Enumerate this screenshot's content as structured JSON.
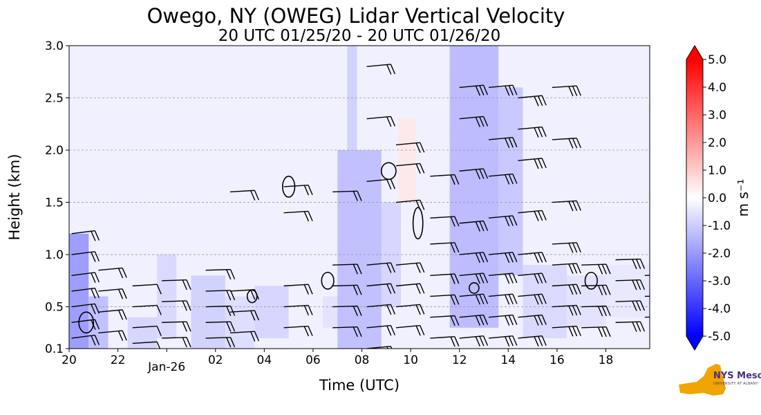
{
  "chart_data": {
    "type": "heatmap",
    "title": "Owego, NY (OWEG) Lidar Vertical Velocity",
    "subtitle": "20 UTC 01/25/20 - 20 UTC 01/26/20",
    "xlabel": "Time (UTC)",
    "ylabel": "Height (km)",
    "x_ticks": [
      "20",
      "22",
      "Jan-26",
      "02",
      "04",
      "06",
      "08",
      "10",
      "12",
      "14",
      "16",
      "18"
    ],
    "x_tick_hours": [
      0,
      2,
      4,
      6,
      8,
      10,
      12,
      14,
      16,
      18,
      20,
      22
    ],
    "xlim_hours": [
      0,
      23.8
    ],
    "y_ticks": [
      "0.1",
      "0.5",
      "1.0",
      "1.5",
      "2.0",
      "2.5",
      "3.0"
    ],
    "y_tick_values": [
      0.1,
      0.5,
      1.0,
      1.5,
      2.0,
      2.5,
      3.0
    ],
    "ylim": [
      0.1,
      3.0
    ],
    "grid": "horizontal dashed",
    "colorbar": {
      "label": "m s⁻¹",
      "min": -5.0,
      "max": 5.0,
      "extend": "both",
      "tick_labels": [
        "5.0",
        "4.0",
        "3.0",
        "2.0",
        "1.0",
        "0.0",
        "-1.0",
        "-2.0",
        "-3.0",
        "-4.0",
        "-5.0"
      ],
      "tick_values": [
        5,
        4,
        3,
        2,
        1,
        0,
        -1,
        -2,
        -3,
        -4,
        -5
      ],
      "colors": {
        "low": "#0000ff",
        "mid": "#ffffff",
        "high": "#ff0000"
      }
    },
    "background_value": -0.3,
    "velocity_patches": [
      {
        "t0": 0.0,
        "t1": 0.8,
        "h0": 0.1,
        "h1": 1.2,
        "value": -2.2
      },
      {
        "t0": 0.8,
        "t1": 1.6,
        "h0": 0.1,
        "h1": 0.6,
        "value": -1.4
      },
      {
        "t0": 2.4,
        "t1": 3.6,
        "h0": 0.1,
        "h1": 0.4,
        "value": -0.9
      },
      {
        "t0": 3.6,
        "t1": 4.4,
        "h0": 0.2,
        "h1": 1.0,
        "value": -0.8
      },
      {
        "t0": 5.0,
        "t1": 6.4,
        "h0": 0.1,
        "h1": 0.8,
        "value": -1.0
      },
      {
        "t0": 6.4,
        "t1": 7.6,
        "h0": 0.1,
        "h1": 0.6,
        "value": -0.7
      },
      {
        "t0": 7.6,
        "t1": 9.0,
        "h0": 0.2,
        "h1": 0.7,
        "value": -0.9
      },
      {
        "t0": 10.4,
        "t1": 11.2,
        "h0": 0.3,
        "h1": 0.6,
        "value": -0.6
      },
      {
        "t0": 11.0,
        "t1": 12.8,
        "h0": 0.1,
        "h1": 2.0,
        "value": -1.4
      },
      {
        "t0": 11.4,
        "t1": 11.8,
        "h0": 2.0,
        "h1": 3.0,
        "value": -1.0
      },
      {
        "t0": 12.8,
        "t1": 13.6,
        "h0": 0.5,
        "h1": 1.5,
        "value": -0.9
      },
      {
        "t0": 13.5,
        "t1": 14.2,
        "h0": 1.5,
        "h1": 2.3,
        "value": 0.5
      },
      {
        "t0": 15.6,
        "t1": 17.6,
        "h0": 0.3,
        "h1": 3.0,
        "value": -1.5
      },
      {
        "t0": 17.6,
        "t1": 18.6,
        "h0": 0.8,
        "h1": 2.6,
        "value": -1.2
      },
      {
        "t0": 18.6,
        "t1": 20.4,
        "h0": 0.2,
        "h1": 0.9,
        "value": -0.8
      },
      {
        "t0": 20.4,
        "t1": 22.0,
        "h0": 0.3,
        "h1": 0.8,
        "value": -0.6
      },
      {
        "t0": 22.0,
        "t1": 23.8,
        "h0": 0.4,
        "h1": 0.9,
        "value": -0.5
      }
    ],
    "contours": [
      {
        "t": 9.0,
        "h": 1.65,
        "rt": 0.25,
        "rh": 0.1
      },
      {
        "t": 13.1,
        "h": 1.8,
        "rt": 0.3,
        "rh": 0.08
      },
      {
        "t": 14.3,
        "h": 1.3,
        "rt": 0.2,
        "rh": 0.15
      },
      {
        "t": 10.6,
        "h": 0.75,
        "rt": 0.25,
        "rh": 0.08
      },
      {
        "t": 7.5,
        "h": 0.6,
        "rt": 0.2,
        "rh": 0.06
      },
      {
        "t": 21.4,
        "h": 0.75,
        "rt": 0.25,
        "rh": 0.08
      },
      {
        "t": 0.7,
        "h": 0.35,
        "rt": 0.3,
        "rh": 0.1
      },
      {
        "t": 16.6,
        "h": 0.68,
        "rt": 0.2,
        "rh": 0.05
      }
    ],
    "wind_barb_columns": [
      {
        "t": 0.1,
        "heights": [
          0.2,
          0.35,
          0.5,
          0.65,
          0.8,
          1.0,
          1.2
        ],
        "dir": 250,
        "flags": 2
      },
      {
        "t": 1.2,
        "heights": [
          0.25,
          0.45,
          0.65,
          0.85
        ],
        "dir": 255,
        "flags": 2
      },
      {
        "t": 2.6,
        "heights": [
          0.15,
          0.3,
          0.5,
          0.7
        ],
        "dir": 260,
        "flags": 1
      },
      {
        "t": 3.8,
        "heights": [
          0.2,
          0.35,
          0.55,
          0.75
        ],
        "dir": 265,
        "flags": 2
      },
      {
        "t": 5.6,
        "heights": [
          0.2,
          0.35,
          0.5,
          0.65,
          0.85
        ],
        "dir": 265,
        "flags": 2
      },
      {
        "t": 6.6,
        "heights": [
          0.25,
          0.45,
          0.65,
          1.6
        ],
        "dir": 260,
        "flags": 2
      },
      {
        "t": 8.8,
        "heights": [
          0.3,
          0.5,
          0.7,
          1.4,
          1.65
        ],
        "dir": 260,
        "flags": 2
      },
      {
        "t": 10.8,
        "heights": [
          0.3,
          0.5,
          0.7,
          0.9,
          1.6
        ],
        "dir": 265,
        "flags": 2
      },
      {
        "t": 12.2,
        "heights": [
          0.1,
          0.3,
          0.5,
          0.7,
          0.9,
          1.7,
          2.3,
          2.8
        ],
        "dir": 255,
        "flags": 2
      },
      {
        "t": 13.4,
        "heights": [
          0.3,
          0.5,
          0.7,
          0.9,
          1.5,
          1.85,
          2.05
        ],
        "dir": 255,
        "flags": 2
      },
      {
        "t": 14.8,
        "heights": [
          0.2,
          0.4,
          0.6,
          0.8,
          1.1,
          1.35,
          1.75
        ],
        "dir": 260,
        "flags": 2
      },
      {
        "t": 16.0,
        "heights": [
          0.2,
          0.4,
          0.6,
          0.8,
          1.0,
          1.3,
          1.8,
          2.3,
          2.6
        ],
        "dir": 255,
        "flags": 3
      },
      {
        "t": 17.2,
        "heights": [
          0.2,
          0.4,
          0.6,
          0.8,
          1.0,
          1.35,
          1.75,
          2.1,
          2.6
        ],
        "dir": 255,
        "flags": 3
      },
      {
        "t": 18.4,
        "heights": [
          0.2,
          0.4,
          0.6,
          0.8,
          1.0,
          1.4,
          1.9,
          2.2,
          2.5
        ],
        "dir": 255,
        "flags": 3
      },
      {
        "t": 19.8,
        "heights": [
          0.3,
          0.5,
          0.7,
          0.9,
          1.1,
          1.5,
          2.1,
          2.6
        ],
        "dir": 260,
        "flags": 3
      },
      {
        "t": 21.0,
        "heights": [
          0.3,
          0.5,
          0.7,
          0.9
        ],
        "dir": 265,
        "flags": 3
      },
      {
        "t": 22.4,
        "heights": [
          0.35,
          0.55,
          0.75,
          0.95
        ],
        "dir": 265,
        "flags": 3
      },
      {
        "t": 23.6,
        "heights": [
          0.4,
          0.6,
          0.8
        ],
        "dir": 265,
        "flags": 3
      }
    ]
  },
  "logo": {
    "name": "NYS Mesonet",
    "text": "NYS Mesonet",
    "subtext": "UNIVERSITY AT ALBANY",
    "colors": {
      "state": "#f0a500",
      "text": "#4b2e83"
    }
  }
}
